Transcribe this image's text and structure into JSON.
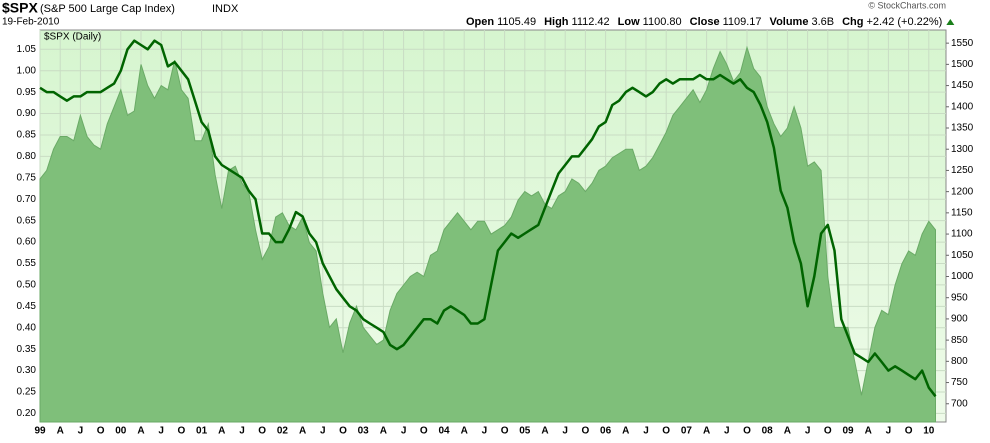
{
  "chart_data": {
    "type": "area-line",
    "symbol": "$SPX",
    "name": "(S&P 500 Large Cap Index)",
    "exchange": "INDX",
    "date": "19-Feb-2010",
    "panel_label": "$SPX (Daily)",
    "copyright": "© StockCharts.com",
    "quote": [
      {
        "label": "Open",
        "value": "1105.49"
      },
      {
        "label": "High",
        "value": "1112.42"
      },
      {
        "label": "Low",
        "value": "1100.80"
      },
      {
        "label": "Close",
        "value": "1109.17"
      },
      {
        "label": "Volume",
        "value": "3.6B"
      },
      {
        "label": "Chg",
        "value": "+2.42 (+0.22%)"
      }
    ],
    "categories": [
      "99",
      null,
      null,
      "A",
      null,
      null,
      "J",
      null,
      null,
      "O",
      null,
      null,
      "00",
      null,
      null,
      "A",
      null,
      null,
      "J",
      null,
      null,
      "O",
      null,
      null,
      "01",
      null,
      null,
      "A",
      null,
      null,
      "J",
      null,
      null,
      "O",
      null,
      null,
      "02",
      null,
      null,
      "A",
      null,
      null,
      "J",
      null,
      null,
      "O",
      null,
      null,
      "03",
      null,
      null,
      "A",
      null,
      null,
      "J",
      null,
      null,
      "O",
      null,
      null,
      "04",
      null,
      null,
      "A",
      null,
      null,
      "J",
      null,
      null,
      "O",
      null,
      null,
      "05",
      null,
      null,
      "A",
      null,
      null,
      "J",
      null,
      null,
      "O",
      null,
      null,
      "06",
      null,
      null,
      "A",
      null,
      null,
      "J",
      null,
      null,
      "O",
      null,
      null,
      "07",
      null,
      null,
      "A",
      null,
      null,
      "J",
      null,
      null,
      "O",
      null,
      null,
      "08",
      null,
      null,
      "A",
      null,
      null,
      "J",
      null,
      null,
      "O",
      null,
      null,
      "09",
      null,
      null,
      "A",
      null,
      null,
      "J",
      null,
      null,
      "O",
      null,
      null,
      "10",
      null
    ],
    "series": [
      {
        "kind": "area",
        "axis": "y2",
        "color": "#7fbf7a",
        "values": [
          1230,
          1250,
          1300,
          1330,
          1330,
          1320,
          1380,
          1330,
          1310,
          1300,
          1360,
          1400,
          1440,
          1380,
          1390,
          1500,
          1450,
          1420,
          1450,
          1440,
          1510,
          1440,
          1420,
          1320,
          1320,
          1360,
          1240,
          1160,
          1250,
          1260,
          1220,
          1200,
          1110,
          1040,
          1070,
          1140,
          1150,
          1120,
          1110,
          1140,
          1080,
          1060,
          960,
          880,
          900,
          820,
          890,
          930,
          880,
          860,
          840,
          850,
          920,
          960,
          980,
          1000,
          1010,
          1000,
          1050,
          1060,
          1110,
          1130,
          1150,
          1130,
          1110,
          1130,
          1130,
          1100,
          1110,
          1120,
          1140,
          1180,
          1200,
          1190,
          1200,
          1170,
          1160,
          1190,
          1200,
          1230,
          1220,
          1200,
          1220,
          1250,
          1260,
          1280,
          1290,
          1300,
          1300,
          1250,
          1260,
          1280,
          1310,
          1340,
          1380,
          1400,
          1420,
          1440,
          1410,
          1440,
          1490,
          1530,
          1500,
          1460,
          1480,
          1540,
          1490,
          1470,
          1400,
          1360,
          1330,
          1350,
          1400,
          1350,
          1260,
          1270,
          1250,
          1000,
          880,
          880,
          880,
          800,
          720,
          800,
          880,
          920,
          910,
          980,
          1030,
          1060,
          1050,
          1100,
          1130,
          1110
        ]
      },
      {
        "kind": "line",
        "axis": "y",
        "color": "#006400",
        "values": [
          0.96,
          0.95,
          0.95,
          0.94,
          0.93,
          0.94,
          0.94,
          0.95,
          0.95,
          0.95,
          0.96,
          0.97,
          1.0,
          1.05,
          1.07,
          1.06,
          1.05,
          1.07,
          1.06,
          1.01,
          1.02,
          1.0,
          0.98,
          0.93,
          0.88,
          0.86,
          0.8,
          0.78,
          0.77,
          0.76,
          0.75,
          0.72,
          0.7,
          0.62,
          0.62,
          0.6,
          0.6,
          0.63,
          0.67,
          0.66,
          0.62,
          0.6,
          0.55,
          0.52,
          0.49,
          0.47,
          0.45,
          0.44,
          0.42,
          0.41,
          0.4,
          0.39,
          0.36,
          0.35,
          0.36,
          0.38,
          0.4,
          0.42,
          0.42,
          0.41,
          0.44,
          0.45,
          0.44,
          0.43,
          0.41,
          0.41,
          0.42,
          0.5,
          0.58,
          0.6,
          0.62,
          0.61,
          0.62,
          0.63,
          0.64,
          0.68,
          0.72,
          0.76,
          0.78,
          0.8,
          0.8,
          0.82,
          0.84,
          0.87,
          0.88,
          0.92,
          0.93,
          0.95,
          0.96,
          0.95,
          0.94,
          0.95,
          0.97,
          0.98,
          0.97,
          0.98,
          0.98,
          0.98,
          0.99,
          0.98,
          0.98,
          0.99,
          0.98,
          0.97,
          0.98,
          0.96,
          0.95,
          0.92,
          0.88,
          0.82,
          0.72,
          0.68,
          0.6,
          0.55,
          0.45,
          0.52,
          0.62,
          0.64,
          0.58,
          0.42,
          0.38,
          0.34,
          0.33,
          0.32,
          0.34,
          0.32,
          0.3,
          0.31,
          0.3,
          0.29,
          0.28,
          0.3,
          0.26,
          0.24
        ]
      }
    ],
    "ylim": [
      0.18,
      1.095
    ],
    "yticks": [
      {
        "value": 0.2,
        "label": "0.20"
      },
      {
        "value": 0.25,
        "label": "0.25"
      },
      {
        "value": 0.3,
        "label": "0.30"
      },
      {
        "value": 0.35,
        "label": "0.35"
      },
      {
        "value": 0.4,
        "label": "0.40"
      },
      {
        "value": 0.45,
        "label": "0.45"
      },
      {
        "value": 0.5,
        "label": "0.50"
      },
      {
        "value": 0.55,
        "label": "0.55"
      },
      {
        "value": 0.6,
        "label": "0.60"
      },
      {
        "value": 0.65,
        "label": "0.65"
      },
      {
        "value": 0.7,
        "label": "0.70"
      },
      {
        "value": 0.75,
        "label": "0.75"
      },
      {
        "value": 0.8,
        "label": "0.80"
      },
      {
        "value": 0.85,
        "label": "0.85"
      },
      {
        "value": 0.9,
        "label": "0.90"
      },
      {
        "value": 0.95,
        "label": "0.95"
      },
      {
        "value": 1.0,
        "label": "1.00"
      },
      {
        "value": 1.05,
        "label": "1.05"
      }
    ],
    "y2lim": [
      657,
      1581
    ],
    "y2ticks": [
      700,
      750,
      800,
      850,
      900,
      950,
      1000,
      1050,
      1100,
      1150,
      1200,
      1250,
      1300,
      1350,
      1400,
      1450,
      1500,
      1550
    ],
    "grid": true
  }
}
